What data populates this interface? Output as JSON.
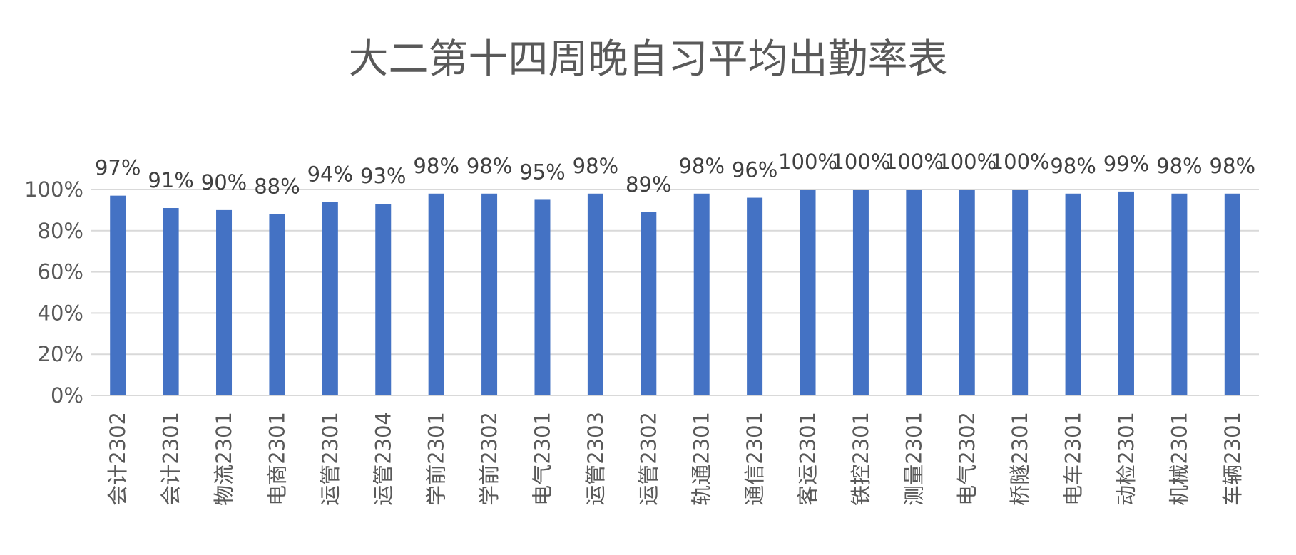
{
  "chart_data": {
    "type": "bar",
    "title": "大二第十四周晚自习平均出勤率表",
    "xlabel": "",
    "ylabel": "",
    "ylim": [
      0,
      100
    ],
    "grid": true,
    "y_ticks": [
      "0%",
      "20%",
      "40%",
      "60%",
      "80%",
      "100%"
    ],
    "categories": [
      "会计2302",
      "会计2301",
      "物流2301",
      "电商2301",
      "运管2301",
      "运管2304",
      "学前2301",
      "学前2302",
      "电气2301",
      "运管2303",
      "运管2302",
      "轨通2301",
      "通信2301",
      "客运2301",
      "铁控2301",
      "测量2301",
      "电气2302",
      "桥隧2301",
      "电车2301",
      "动检2301",
      "机械2301",
      "车辆2301"
    ],
    "values": [
      97,
      91,
      90,
      88,
      94,
      93,
      98,
      98,
      95,
      98,
      89,
      98,
      96,
      100,
      100,
      100,
      100,
      100,
      98,
      99,
      98,
      98
    ],
    "data_labels": [
      "97%",
      "91%",
      "90%",
      "88%",
      "94%",
      "93%",
      "98%",
      "98%",
      "95%",
      "98%",
      "89%",
      "98%",
      "96%",
      "100%",
      "100%",
      "100%",
      "100%",
      "100%",
      "98%",
      "99%",
      "98%",
      "98%"
    ],
    "bar_color": "#4472c4",
    "gridline_color": "#d9d9d9"
  }
}
